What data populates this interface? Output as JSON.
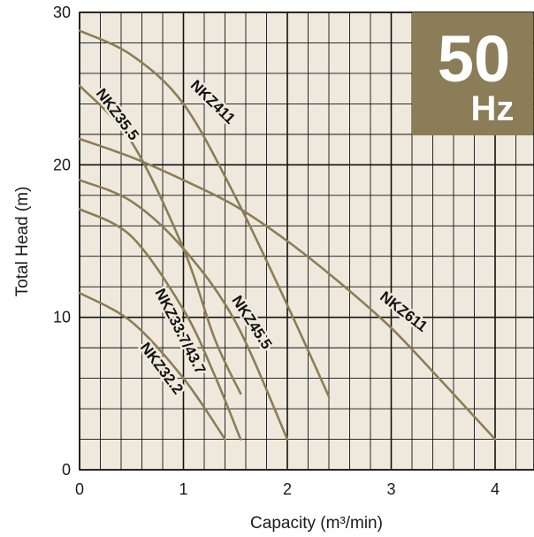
{
  "chart_data": {
    "type": "line",
    "title": "",
    "xlabel": "Capacity (m³/min)",
    "ylabel": "Total Head (m)",
    "xlim": [
      0,
      4.3
    ],
    "ylim": [
      0,
      30
    ],
    "x_ticks": [
      "0",
      "1",
      "2",
      "3",
      "4"
    ],
    "y_ticks": [
      "0",
      "10",
      "20",
      "30"
    ],
    "grid": true,
    "badge": {
      "value": "50",
      "unit": "Hz"
    },
    "series": [
      {
        "name": "NKZ411",
        "x": [
          0,
          0.5,
          1.0,
          1.5,
          2.0,
          2.4
        ],
        "y": [
          28.8,
          27.2,
          24.0,
          17.9,
          10.8,
          4.8
        ]
      },
      {
        "name": "NKZ35.5",
        "x": [
          0,
          0.5,
          1.0,
          1.3,
          1.55
        ],
        "y": [
          25.2,
          21.5,
          14.5,
          8.6,
          5.0
        ]
      },
      {
        "name": "NKZ611",
        "x": [
          0,
          0.5,
          1.0,
          1.5,
          2.0,
          2.5,
          3.0,
          3.5,
          4.0
        ],
        "y": [
          21.7,
          20.5,
          19.0,
          17.3,
          15.0,
          12.3,
          9.3,
          5.7,
          2.0
        ]
      },
      {
        "name": "NKZ45.5",
        "x": [
          0,
          0.5,
          1.0,
          1.5,
          2.0
        ],
        "y": [
          19.0,
          17.6,
          14.5,
          9.7,
          2.0
        ]
      },
      {
        "name": "NKZ33.7/43.7",
        "x": [
          0,
          0.5,
          1.0,
          1.3,
          1.55
        ],
        "y": [
          17.1,
          15.3,
          10.5,
          6.2,
          2.0
        ]
      },
      {
        "name": "NKZ32.2",
        "x": [
          0,
          0.5,
          1.0,
          1.4
        ],
        "y": [
          11.6,
          9.7,
          6.0,
          2.0
        ]
      }
    ]
  },
  "colors": {
    "curve": "#8d7d55",
    "badge": "#8b7d58",
    "plot_bg": "#efe9dd",
    "grid": "#111111"
  }
}
